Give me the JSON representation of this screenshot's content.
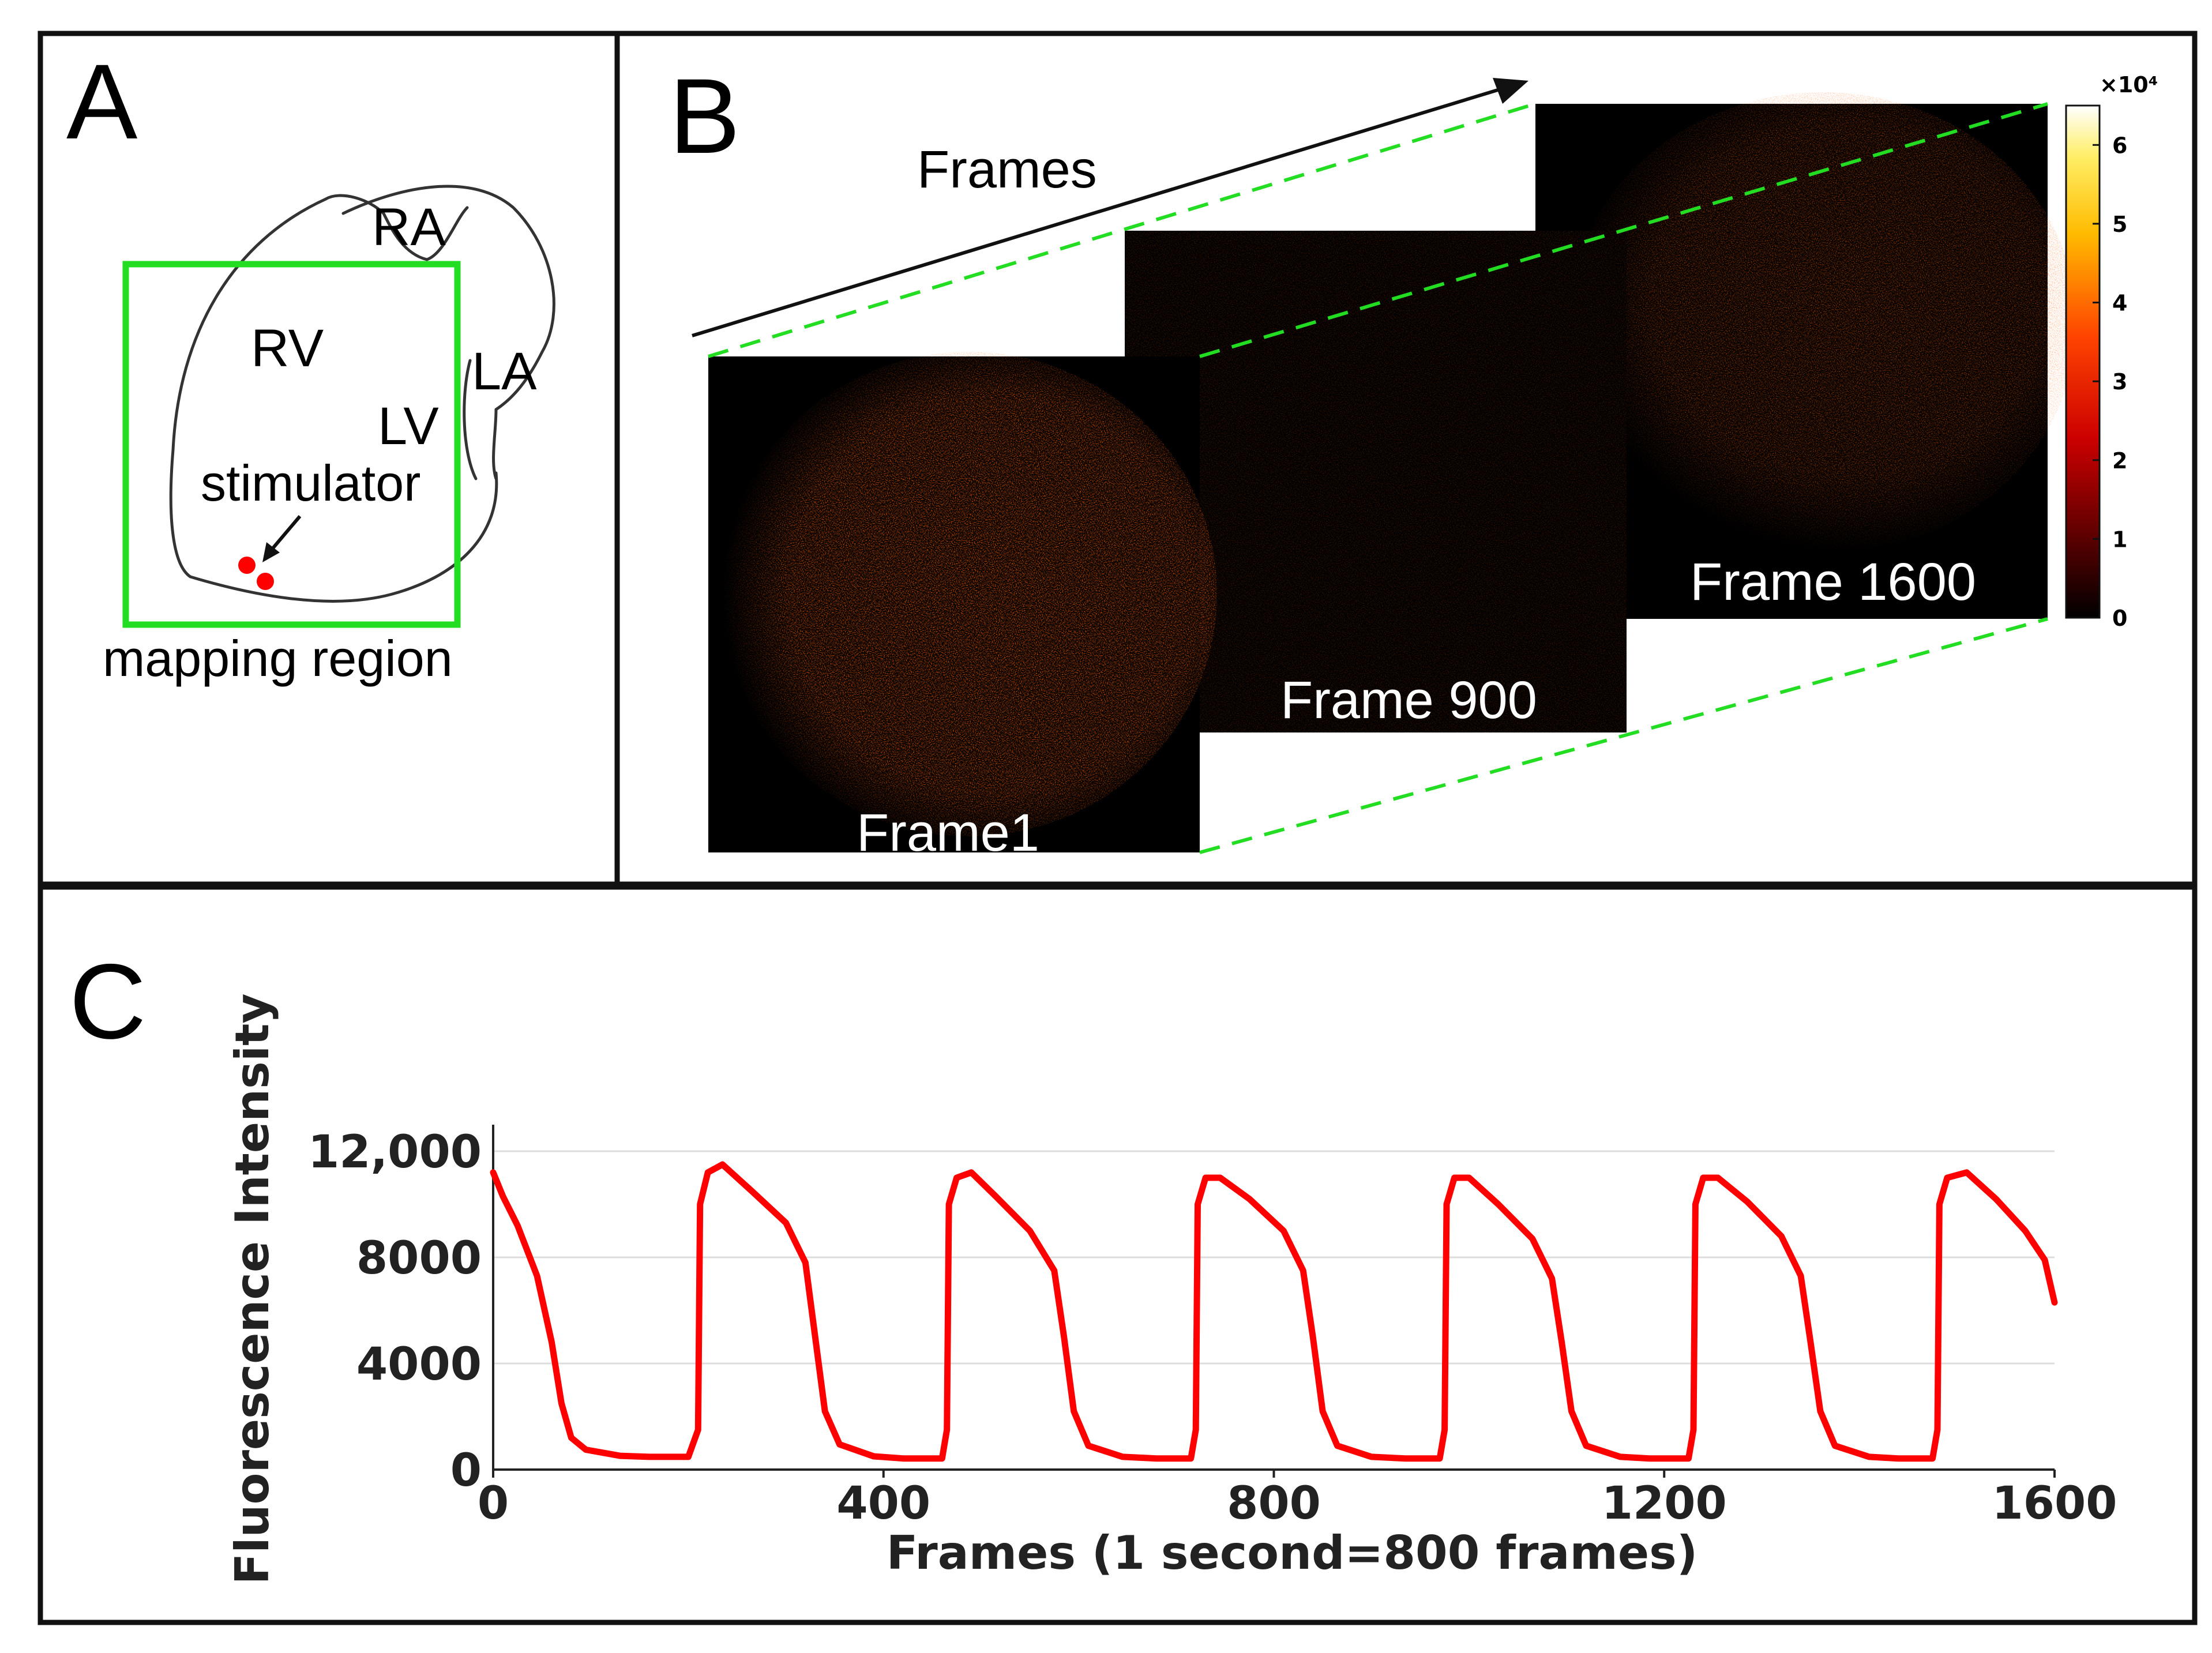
{
  "panel_a": {
    "letter": "A",
    "labels": {
      "ra": "RA",
      "rv": "RV",
      "la": "LA",
      "lv": "LV",
      "stimulator": "stimulator",
      "mapping_region": "mapping region"
    },
    "colors": {
      "mapping_box": "#22dd22",
      "stimulator_dots": "#ff0000",
      "outline": "#333333"
    }
  },
  "panel_b": {
    "letter": "B",
    "arrow_label": "Frames",
    "frames": [
      {
        "label": "Frame1",
        "brightness": 0.85
      },
      {
        "label": "Frame 900",
        "brightness": 0.12
      },
      {
        "label": "Frame 1600",
        "brightness": 0.55
      }
    ],
    "colorbar": {
      "exponent_label": "×10⁴",
      "ticks": [
        "6",
        "5",
        "4",
        "3",
        "2",
        "1",
        "0"
      ],
      "max": 6.5,
      "colormap": "hot"
    },
    "colors": {
      "guide_lines": "#22dd22",
      "frame_background": "#000000",
      "signal": "#ff2200"
    }
  },
  "panel_c": {
    "letter": "C"
  },
  "chart_data": {
    "type": "line",
    "title": "",
    "xlabel": "Frames (1 second=800 frames)",
    "ylabel": "Fluorescence Intensity",
    "xlim": [
      0,
      1600
    ],
    "ylim": [
      0,
      13000
    ],
    "x_ticks": [
      0,
      400,
      800,
      1200,
      1600
    ],
    "x_tick_labels": [
      "0",
      "400",
      "800",
      "1200",
      "1600"
    ],
    "y_ticks": [
      0,
      4000,
      8000,
      12000
    ],
    "y_tick_labels": [
      "0",
      "4000",
      "8000",
      "12,000"
    ],
    "grid": "horizontal",
    "color": "#ff0000",
    "series": [
      {
        "x": [
          0,
          10,
          25,
          45,
          60,
          70,
          80,
          95,
          130,
          160,
          200,
          210,
          212,
          220,
          235,
          265,
          300,
          320,
          330,
          340,
          355,
          390,
          420,
          460,
          465,
          467,
          475,
          490,
          515,
          550,
          575,
          585,
          595,
          610,
          645,
          680,
          715,
          720,
          722,
          730,
          745,
          775,
          810,
          830,
          840,
          850,
          865,
          900,
          935,
          970,
          975,
          977,
          985,
          1000,
          1030,
          1065,
          1085,
          1095,
          1105,
          1120,
          1155,
          1185,
          1225,
          1230,
          1232,
          1240,
          1255,
          1285,
          1320,
          1340,
          1350,
          1360,
          1375,
          1410,
          1440,
          1475,
          1480,
          1482,
          1490,
          1510,
          1540,
          1570,
          1590,
          1600
        ],
        "y": [
          11200,
          10300,
          9200,
          7300,
          4800,
          2500,
          1200,
          750,
          520,
          480,
          480,
          1500,
          10000,
          11200,
          11500,
          10500,
          9300,
          7800,
          5000,
          2200,
          950,
          500,
          420,
          420,
          1500,
          10000,
          11000,
          11200,
          10300,
          9000,
          7500,
          5000,
          2200,
          900,
          480,
          420,
          420,
          1500,
          10000,
          11000,
          11000,
          10200,
          9000,
          7500,
          5000,
          2200,
          900,
          480,
          420,
          420,
          1500,
          10000,
          11000,
          11000,
          10000,
          8700,
          7200,
          4800,
          2200,
          900,
          480,
          420,
          420,
          1500,
          10000,
          11000,
          11000,
          10100,
          8800,
          7300,
          4800,
          2200,
          900,
          480,
          420,
          420,
          1500,
          10000,
          11000,
          11200,
          10200,
          9000,
          7900,
          6300
        ]
      }
    ]
  }
}
